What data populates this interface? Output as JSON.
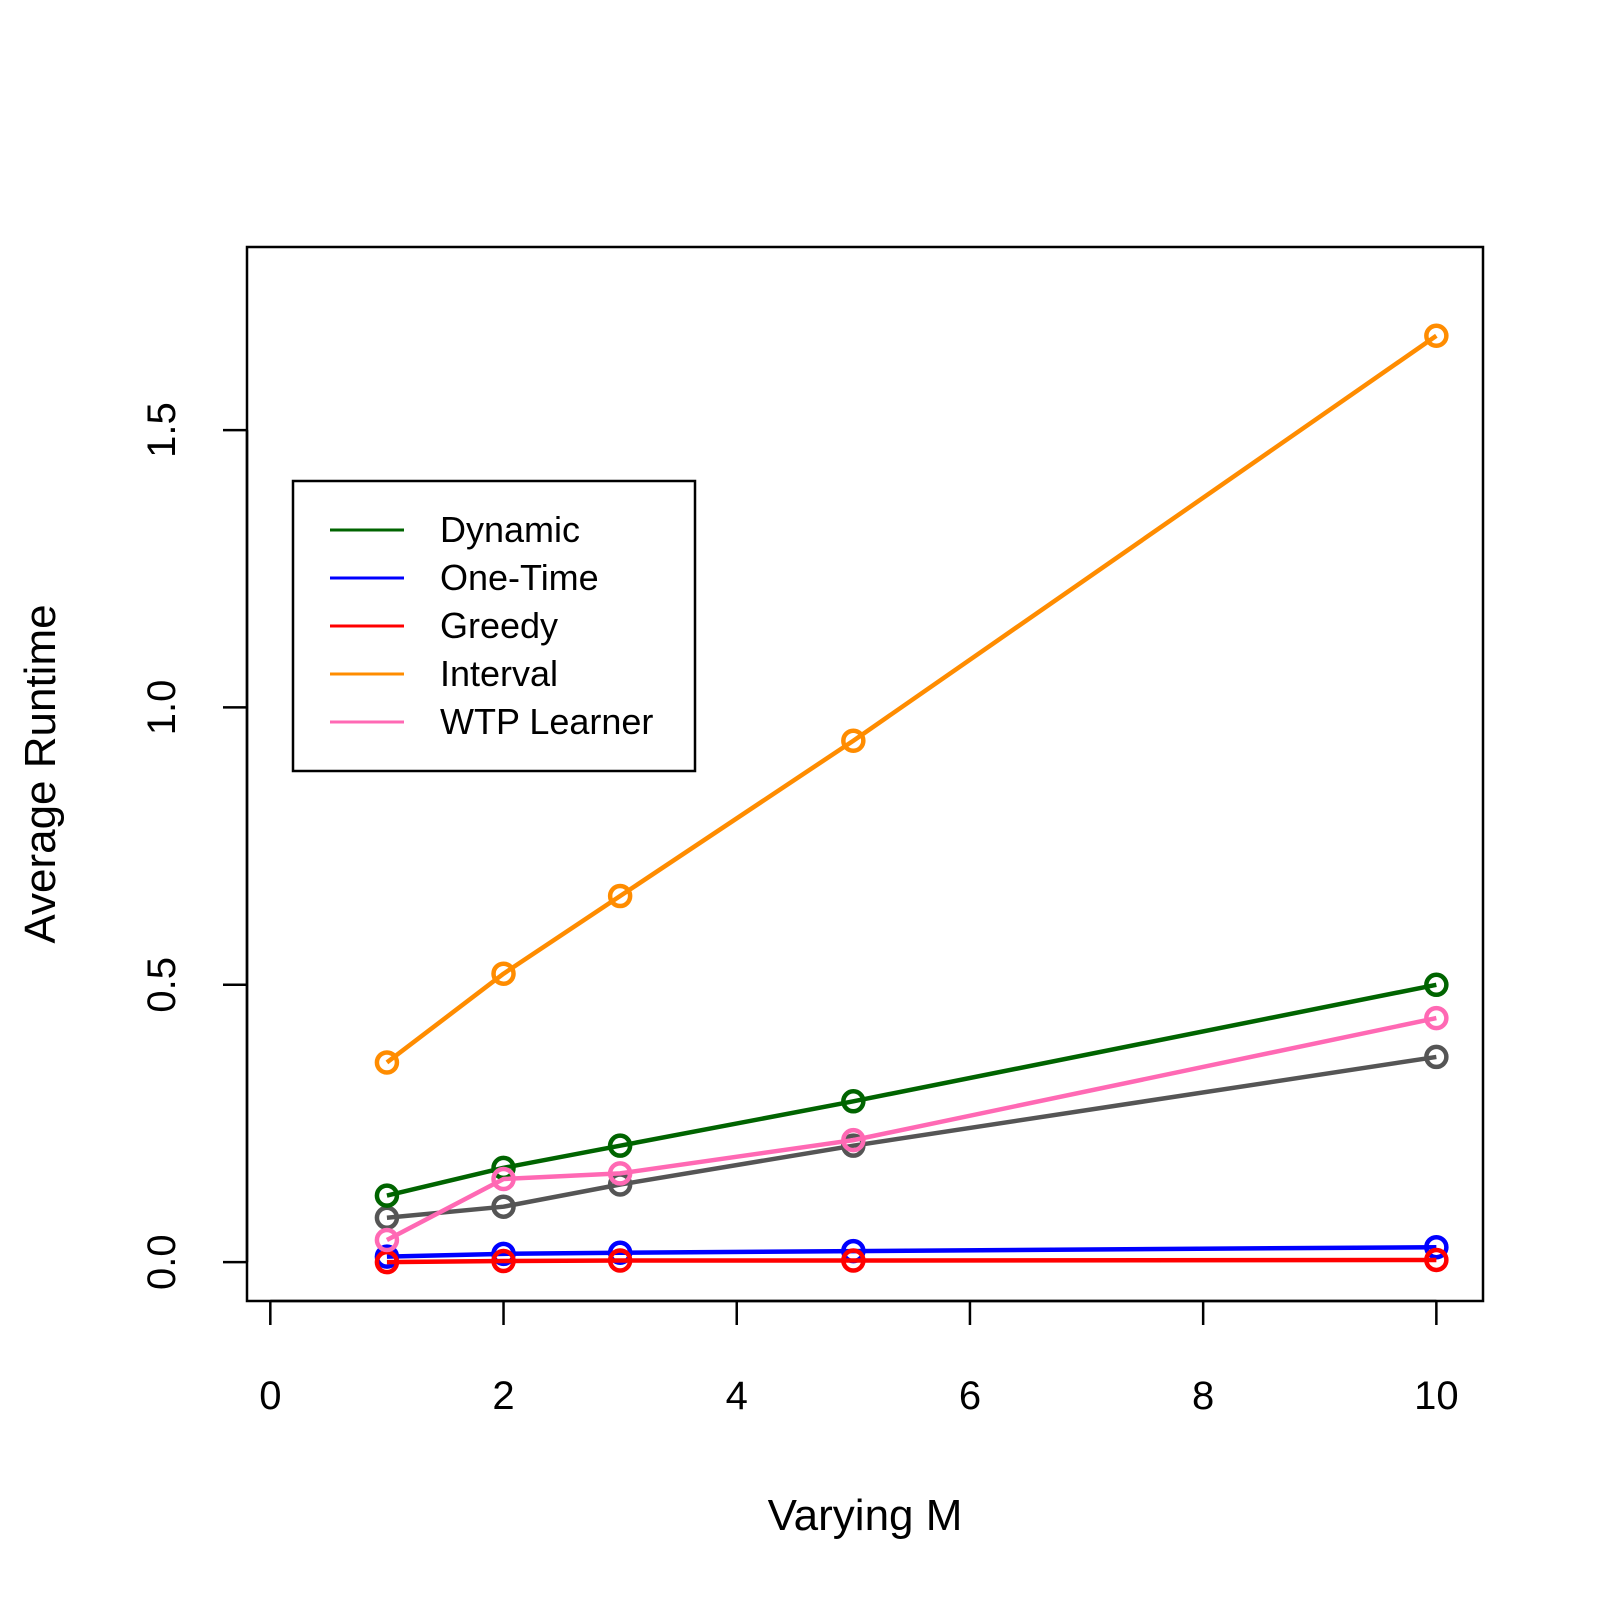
{
  "chart_data": {
    "type": "line",
    "title": "",
    "xlabel": "Varying M",
    "ylabel": "Average Runtime",
    "xlim": [
      -0.2,
      10.4
    ],
    "ylim": [
      -0.07,
      1.83
    ],
    "x_ticks": [
      0,
      2,
      4,
      6,
      8,
      10
    ],
    "x_tick_labels": [
      "0",
      "2",
      "4",
      "6",
      "8",
      "10"
    ],
    "y_ticks": [
      0.0,
      0.5,
      1.0,
      1.5
    ],
    "y_tick_labels": [
      "0.0",
      "0.5",
      "1.0",
      "1.5"
    ],
    "legend_position": "upper-left",
    "x": [
      1,
      2,
      3,
      5,
      10
    ],
    "series": [
      {
        "name": "Dynamic",
        "color": "#006400",
        "legend": true,
        "values": [
          0.12,
          0.17,
          0.21,
          0.29,
          0.5
        ]
      },
      {
        "name": "One-Time",
        "color": "#0000FF",
        "legend": true,
        "values": [
          0.01,
          0.015,
          0.017,
          0.02,
          0.027
        ]
      },
      {
        "name": "Greedy",
        "color": "#FF0000",
        "legend": true,
        "values": [
          0.0,
          0.002,
          0.003,
          0.003,
          0.004
        ]
      },
      {
        "name": "Interval",
        "color": "#FF8C00",
        "legend": true,
        "values": [
          0.36,
          0.52,
          0.66,
          0.94,
          1.67
        ]
      },
      {
        "name": "WTP Learner",
        "color": "#FF69B4",
        "legend": true,
        "values": [
          0.04,
          0.15,
          0.16,
          0.22,
          0.44
        ]
      },
      {
        "color": "#555555",
        "legend": false,
        "values": [
          0.08,
          0.1,
          0.14,
          0.21,
          0.37
        ]
      }
    ]
  }
}
